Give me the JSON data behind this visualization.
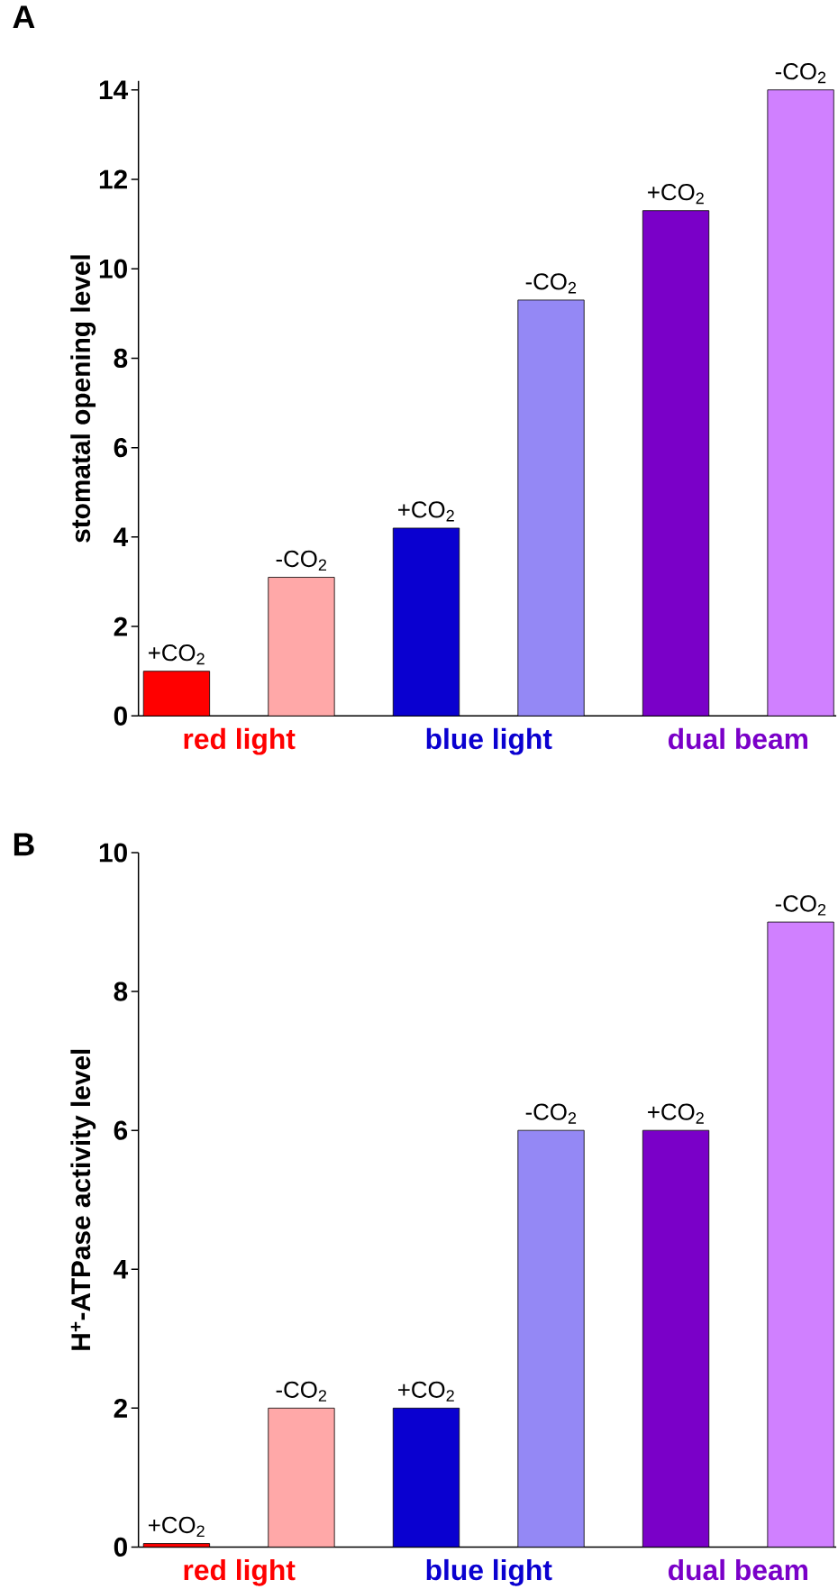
{
  "chart_data": [
    {
      "type": "bar",
      "title": "A",
      "ylabel": "stomatal opening level",
      "categories": [
        "red light",
        "blue light",
        "dual beam"
      ],
      "series": [
        {
          "name": "+CO$_{2}$",
          "colors": [
            "#ff0000",
            "#0a00d0",
            "#7a00c8"
          ],
          "values": [
            1,
            4.2,
            11.3
          ]
        },
        {
          "name": "-CO$_{2}$",
          "colors": [
            "#ffa8a8",
            "#9488f5",
            "#d080ff"
          ],
          "values": [
            3.1,
            9.3,
            14
          ]
        }
      ],
      "ylim": [
        0,
        14.2
      ],
      "yticks": [
        0,
        2,
        4,
        6,
        8,
        10,
        12,
        14
      ]
    },
    {
      "type": "bar",
      "title": "B",
      "ylabel": "H$^{+}$-ATPase activity level",
      "categories": [
        "red light",
        "blue light",
        "dual beam"
      ],
      "series": [
        {
          "name": "+CO$_{2}$",
          "colors": [
            "#ff0000",
            "#0a00d0",
            "#7a00c8"
          ],
          "values": [
            0.05,
            2,
            6
          ]
        },
        {
          "name": "-CO$_{2}$",
          "colors": [
            "#ffa8a8",
            "#9488f5",
            "#d080ff"
          ],
          "values": [
            2,
            6,
            9
          ]
        }
      ],
      "ylim": [
        0,
        10
      ],
      "yticks": [
        0,
        2,
        4,
        6,
        8,
        10
      ]
    }
  ]
}
